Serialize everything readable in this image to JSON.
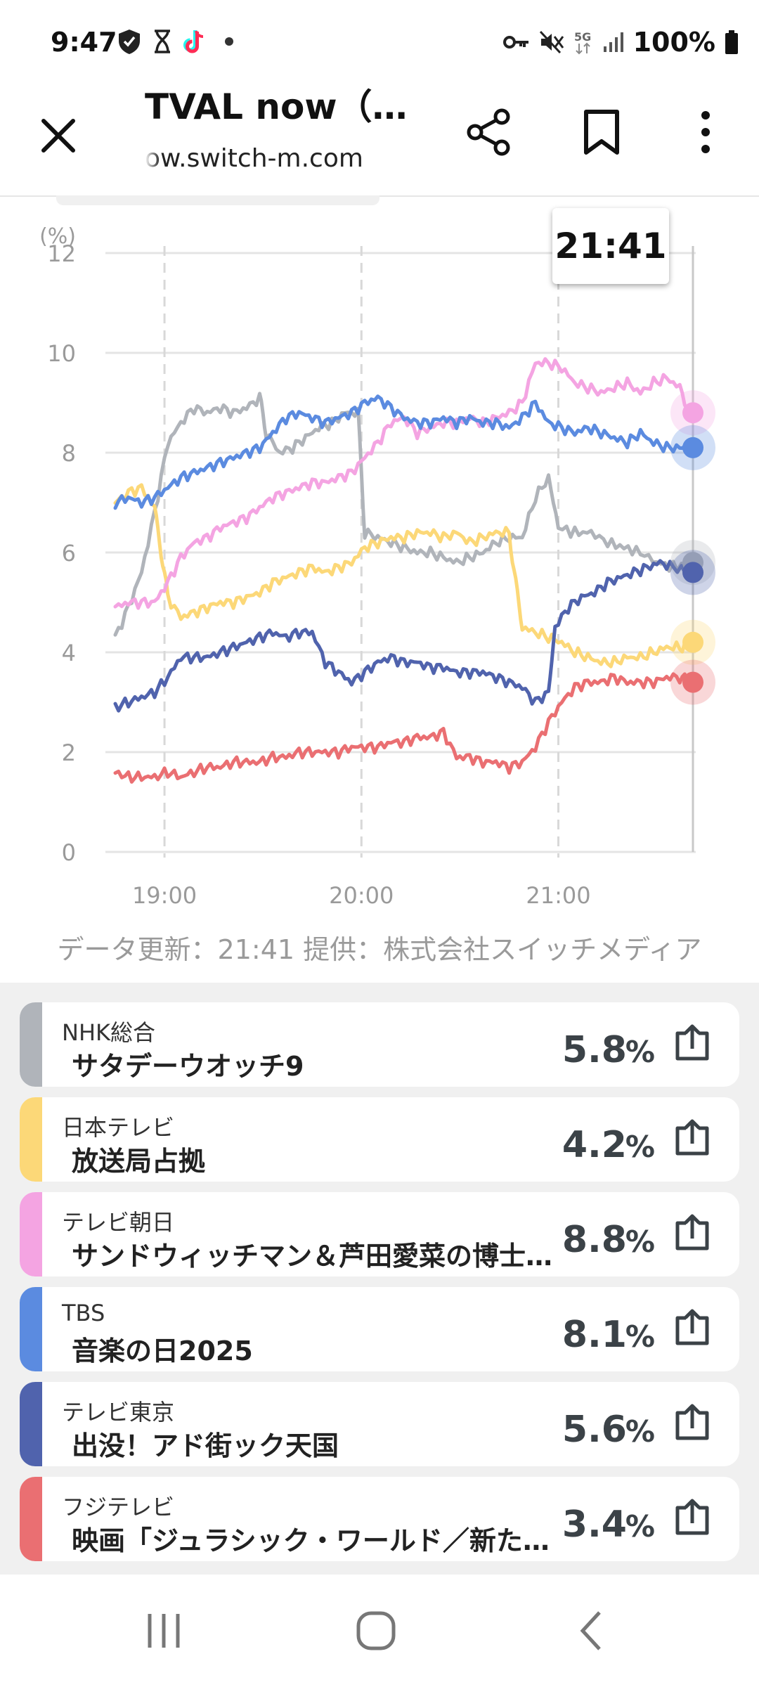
{
  "status_bar": {
    "time": "9:47",
    "battery_percent": "100%",
    "left_icons": [
      "shield-icon",
      "hourglass-icon",
      "tiktok-icon",
      "dot-icon"
    ],
    "right_icons": [
      "key-icon",
      "mute-icon",
      "5g-icon",
      "signal-icon",
      "battery-icon"
    ]
  },
  "browser": {
    "title": "TVAL now（テ…",
    "url": "ow.switch-m.com"
  },
  "chart": {
    "tooltip_time": "21:41",
    "credit": "データ更新：21:41  提供：株式会社スイッチメディア"
  },
  "chart_data": {
    "type": "line",
    "ylabel": "(%)",
    "ylim": [
      0,
      12
    ],
    "yticks": [
      "0",
      "2",
      "4",
      "6",
      "8",
      "10",
      "12"
    ],
    "xlim": [
      "18:45",
      "21:41"
    ],
    "xticks": [
      "19:00",
      "20:00",
      "21:00"
    ],
    "x_minutes_at_ticks": [
      15,
      75,
      135
    ],
    "grid": "horizontal solid, vertical dashed",
    "legend": "none",
    "series": [
      {
        "channel": "NHK総合",
        "color": "#b0b4ba",
        "points": [
          [
            0,
            4.3
          ],
          [
            4,
            4.9
          ],
          [
            8,
            5.6
          ],
          [
            12,
            6.8
          ],
          [
            16,
            8.2
          ],
          [
            20,
            8.6
          ],
          [
            24,
            8.9
          ],
          [
            28,
            8.8
          ],
          [
            32,
            8.9
          ],
          [
            36,
            8.8
          ],
          [
            40,
            8.9
          ],
          [
            44,
            9.1
          ],
          [
            46,
            8.4
          ],
          [
            50,
            8.0
          ],
          [
            54,
            8.1
          ],
          [
            58,
            8.3
          ],
          [
            62,
            8.5
          ],
          [
            66,
            8.6
          ],
          [
            70,
            8.8
          ],
          [
            74,
            8.8
          ],
          [
            76,
            6.4
          ],
          [
            80,
            6.3
          ],
          [
            84,
            6.2
          ],
          [
            88,
            6.1
          ],
          [
            92,
            6.0
          ],
          [
            96,
            6.0
          ],
          [
            100,
            5.9
          ],
          [
            104,
            5.8
          ],
          [
            108,
            5.9
          ],
          [
            112,
            6.0
          ],
          [
            116,
            6.2
          ],
          [
            120,
            6.3
          ],
          [
            124,
            6.3
          ],
          [
            128,
            7.1
          ],
          [
            132,
            7.5
          ],
          [
            135,
            6.5
          ],
          [
            140,
            6.4
          ],
          [
            145,
            6.4
          ],
          [
            150,
            6.2
          ],
          [
            155,
            6.1
          ],
          [
            160,
            6.0
          ],
          [
            165,
            5.8
          ],
          [
            170,
            5.7
          ],
          [
            175,
            5.8
          ]
        ]
      },
      {
        "channel": "日本テレビ",
        "color": "#fcd878",
        "points": [
          [
            0,
            7.0
          ],
          [
            4,
            7.2
          ],
          [
            8,
            7.3
          ],
          [
            12,
            6.9
          ],
          [
            14,
            6.0
          ],
          [
            16,
            5.1
          ],
          [
            20,
            4.7
          ],
          [
            24,
            4.8
          ],
          [
            28,
            4.9
          ],
          [
            32,
            5.0
          ],
          [
            36,
            5.0
          ],
          [
            40,
            5.1
          ],
          [
            44,
            5.2
          ],
          [
            48,
            5.4
          ],
          [
            52,
            5.5
          ],
          [
            56,
            5.6
          ],
          [
            60,
            5.7
          ],
          [
            64,
            5.6
          ],
          [
            68,
            5.7
          ],
          [
            72,
            5.8
          ],
          [
            76,
            6.1
          ],
          [
            80,
            6.2
          ],
          [
            84,
            6.3
          ],
          [
            88,
            6.3
          ],
          [
            92,
            6.4
          ],
          [
            96,
            6.4
          ],
          [
            100,
            6.3
          ],
          [
            104,
            6.4
          ],
          [
            108,
            6.2
          ],
          [
            112,
            6.3
          ],
          [
            116,
            6.4
          ],
          [
            120,
            6.4
          ],
          [
            122,
            5.4
          ],
          [
            124,
            4.5
          ],
          [
            128,
            4.4
          ],
          [
            132,
            4.3
          ],
          [
            136,
            4.2
          ],
          [
            140,
            4.0
          ],
          [
            144,
            3.9
          ],
          [
            148,
            3.8
          ],
          [
            152,
            3.8
          ],
          [
            156,
            3.9
          ],
          [
            160,
            3.9
          ],
          [
            164,
            4.0
          ],
          [
            168,
            4.1
          ],
          [
            172,
            4.1
          ],
          [
            175,
            4.2
          ]
        ]
      },
      {
        "channel": "テレビ朝日",
        "color": "#f4a4e2",
        "points": [
          [
            0,
            4.9
          ],
          [
            4,
            5.0
          ],
          [
            8,
            5.0
          ],
          [
            12,
            5.0
          ],
          [
            16,
            5.4
          ],
          [
            20,
            5.9
          ],
          [
            24,
            6.2
          ],
          [
            28,
            6.3
          ],
          [
            32,
            6.5
          ],
          [
            36,
            6.6
          ],
          [
            40,
            6.7
          ],
          [
            44,
            6.9
          ],
          [
            48,
            7.1
          ],
          [
            52,
            7.2
          ],
          [
            56,
            7.3
          ],
          [
            60,
            7.4
          ],
          [
            64,
            7.4
          ],
          [
            68,
            7.5
          ],
          [
            72,
            7.6
          ],
          [
            76,
            7.9
          ],
          [
            80,
            8.2
          ],
          [
            84,
            8.6
          ],
          [
            88,
            8.7
          ],
          [
            92,
            8.4
          ],
          [
            96,
            8.5
          ],
          [
            100,
            8.6
          ],
          [
            104,
            8.6
          ],
          [
            108,
            8.7
          ],
          [
            112,
            8.6
          ],
          [
            116,
            8.7
          ],
          [
            120,
            8.8
          ],
          [
            124,
            9.0
          ],
          [
            128,
            9.8
          ],
          [
            132,
            9.8
          ],
          [
            136,
            9.7
          ],
          [
            140,
            9.4
          ],
          [
            144,
            9.3
          ],
          [
            148,
            9.2
          ],
          [
            152,
            9.3
          ],
          [
            156,
            9.4
          ],
          [
            160,
            9.2
          ],
          [
            164,
            9.4
          ],
          [
            168,
            9.5
          ],
          [
            172,
            9.3
          ],
          [
            175,
            8.8
          ]
        ]
      },
      {
        "channel": "TBS",
        "color": "#5b8be0",
        "points": [
          [
            0,
            7.0
          ],
          [
            4,
            7.1
          ],
          [
            8,
            7.0
          ],
          [
            12,
            7.1
          ],
          [
            16,
            7.3
          ],
          [
            20,
            7.5
          ],
          [
            24,
            7.6
          ],
          [
            28,
            7.7
          ],
          [
            32,
            7.8
          ],
          [
            36,
            7.9
          ],
          [
            40,
            8.0
          ],
          [
            44,
            8.1
          ],
          [
            48,
            8.4
          ],
          [
            52,
            8.7
          ],
          [
            56,
            8.8
          ],
          [
            60,
            8.7
          ],
          [
            64,
            8.6
          ],
          [
            68,
            8.7
          ],
          [
            72,
            8.8
          ],
          [
            76,
            9.0
          ],
          [
            80,
            9.1
          ],
          [
            84,
            8.9
          ],
          [
            88,
            8.7
          ],
          [
            92,
            8.6
          ],
          [
            96,
            8.6
          ],
          [
            100,
            8.7
          ],
          [
            104,
            8.6
          ],
          [
            108,
            8.7
          ],
          [
            112,
            8.6
          ],
          [
            116,
            8.6
          ],
          [
            120,
            8.5
          ],
          [
            124,
            8.7
          ],
          [
            128,
            9.0
          ],
          [
            132,
            8.6
          ],
          [
            136,
            8.5
          ],
          [
            140,
            8.4
          ],
          [
            144,
            8.5
          ],
          [
            148,
            8.4
          ],
          [
            152,
            8.3
          ],
          [
            156,
            8.2
          ],
          [
            160,
            8.4
          ],
          [
            164,
            8.2
          ],
          [
            168,
            8.1
          ],
          [
            172,
            8.1
          ],
          [
            175,
            8.1
          ]
        ]
      },
      {
        "channel": "テレビ東京",
        "color": "#5063ad",
        "points": [
          [
            0,
            2.9
          ],
          [
            4,
            3.0
          ],
          [
            8,
            3.1
          ],
          [
            12,
            3.2
          ],
          [
            16,
            3.5
          ],
          [
            20,
            3.9
          ],
          [
            24,
            3.9
          ],
          [
            28,
            3.9
          ],
          [
            32,
            4.0
          ],
          [
            36,
            4.1
          ],
          [
            40,
            4.2
          ],
          [
            44,
            4.3
          ],
          [
            48,
            4.4
          ],
          [
            52,
            4.3
          ],
          [
            56,
            4.4
          ],
          [
            60,
            4.4
          ],
          [
            64,
            3.8
          ],
          [
            68,
            3.6
          ],
          [
            72,
            3.4
          ],
          [
            76,
            3.6
          ],
          [
            80,
            3.8
          ],
          [
            84,
            3.9
          ],
          [
            88,
            3.8
          ],
          [
            92,
            3.8
          ],
          [
            96,
            3.7
          ],
          [
            100,
            3.7
          ],
          [
            104,
            3.6
          ],
          [
            108,
            3.6
          ],
          [
            112,
            3.6
          ],
          [
            116,
            3.5
          ],
          [
            120,
            3.4
          ],
          [
            124,
            3.3
          ],
          [
            128,
            3.0
          ],
          [
            132,
            3.2
          ],
          [
            134,
            4.5
          ],
          [
            138,
            4.9
          ],
          [
            142,
            5.1
          ],
          [
            146,
            5.2
          ],
          [
            150,
            5.4
          ],
          [
            154,
            5.5
          ],
          [
            158,
            5.6
          ],
          [
            162,
            5.7
          ],
          [
            166,
            5.8
          ],
          [
            170,
            5.7
          ],
          [
            175,
            5.6
          ]
        ]
      },
      {
        "channel": "フジテレビ",
        "color": "#ea6f72",
        "points": [
          [
            0,
            1.6
          ],
          [
            4,
            1.5
          ],
          [
            8,
            1.5
          ],
          [
            12,
            1.5
          ],
          [
            16,
            1.6
          ],
          [
            20,
            1.5
          ],
          [
            24,
            1.6
          ],
          [
            28,
            1.7
          ],
          [
            32,
            1.7
          ],
          [
            36,
            1.8
          ],
          [
            40,
            1.8
          ],
          [
            44,
            1.8
          ],
          [
            48,
            1.9
          ],
          [
            52,
            1.9
          ],
          [
            56,
            2.0
          ],
          [
            60,
            2.0
          ],
          [
            64,
            2.0
          ],
          [
            68,
            2.0
          ],
          [
            72,
            2.1
          ],
          [
            76,
            2.1
          ],
          [
            80,
            2.1
          ],
          [
            84,
            2.2
          ],
          [
            88,
            2.2
          ],
          [
            92,
            2.3
          ],
          [
            96,
            2.3
          ],
          [
            100,
            2.4
          ],
          [
            104,
            1.9
          ],
          [
            108,
            1.9
          ],
          [
            112,
            1.8
          ],
          [
            116,
            1.8
          ],
          [
            120,
            1.7
          ],
          [
            124,
            1.8
          ],
          [
            128,
            2.1
          ],
          [
            132,
            2.6
          ],
          [
            136,
            3.0
          ],
          [
            140,
            3.3
          ],
          [
            144,
            3.4
          ],
          [
            148,
            3.4
          ],
          [
            152,
            3.5
          ],
          [
            156,
            3.4
          ],
          [
            160,
            3.4
          ],
          [
            164,
            3.4
          ],
          [
            168,
            3.5
          ],
          [
            172,
            3.5
          ],
          [
            175,
            3.4
          ]
        ]
      }
    ]
  },
  "list": [
    {
      "channel": "NHK総合",
      "program": "サタデーウオッチ9",
      "value": "5.8",
      "unit": "%",
      "color": "#b0b4ba"
    },
    {
      "channel": "日本テレビ",
      "program": "放送局占拠",
      "value": "4.2",
      "unit": "%",
      "color": "#fcd878"
    },
    {
      "channel": "テレビ朝日",
      "program": "サンドウィッチマン＆芦田愛菜の博士ちゃん",
      "value": "8.8",
      "unit": "%",
      "color": "#f4a4e2"
    },
    {
      "channel": "TBS",
      "program": "音楽の日2025",
      "value": "8.1",
      "unit": "%",
      "color": "#5b8be0"
    },
    {
      "channel": "テレビ東京",
      "program": "出没！アド街ック天国",
      "value": "5.6",
      "unit": "%",
      "color": "#5063ad"
    },
    {
      "channel": "フジテレビ",
      "program": "映画「ジュラシック・ワールド／新たなる支配者」",
      "value": "3.4",
      "unit": "%",
      "color": "#ea6f72"
    }
  ],
  "nav": {
    "icons": [
      "recents-icon",
      "home-icon",
      "back-icon"
    ]
  }
}
